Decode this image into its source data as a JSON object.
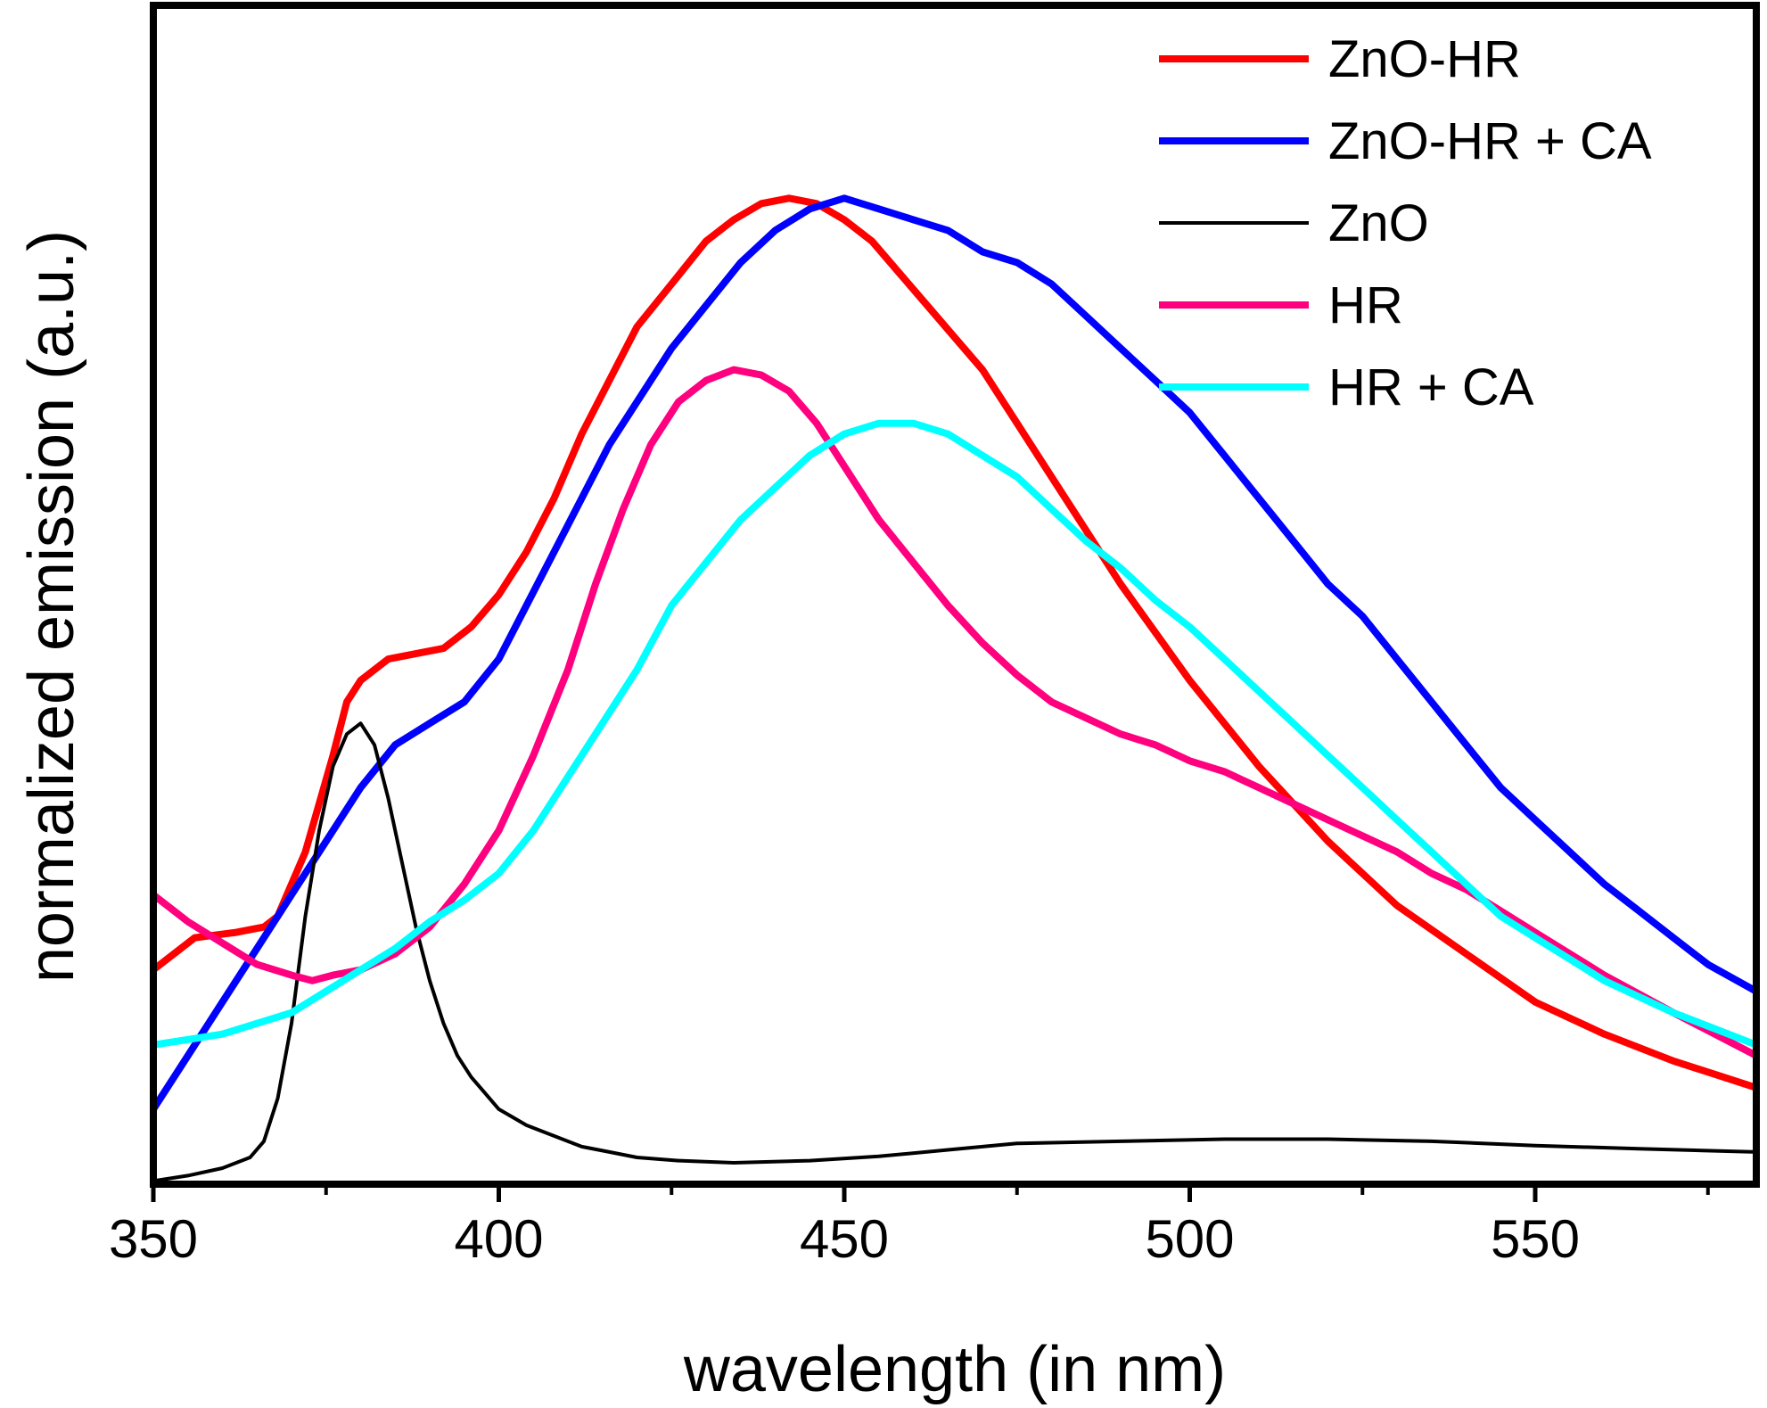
{
  "chart_data": {
    "type": "line",
    "xlabel": "wavelength (in nm)",
    "ylabel": "normalized emission (a.u.)",
    "xlim": [
      350,
      582
    ],
    "ylim": [
      0,
      1.1
    ],
    "x_ticks": [
      350,
      400,
      450,
      500,
      550
    ],
    "x_minor_ticks": [
      375,
      425,
      475,
      525,
      575
    ],
    "y_ticks_shown": false,
    "legend_position": "top-right",
    "series": [
      {
        "name": "ZnO-HR",
        "color": "#ff0000",
        "x": [
          350,
          352,
          356,
          362,
          366,
          368,
          372,
          376,
          378,
          380,
          382,
          384,
          388,
          392,
          396,
          400,
          404,
          408,
          412,
          416,
          420,
          425,
          430,
          434,
          438,
          442,
          446,
          450,
          454,
          458,
          462,
          466,
          470,
          475,
          480,
          485,
          490,
          495,
          500,
          505,
          510,
          515,
          520,
          525,
          530,
          540,
          550,
          560,
          570,
          582
        ],
        "y": [
          0.2,
          0.21,
          0.23,
          0.235,
          0.24,
          0.25,
          0.31,
          0.4,
          0.45,
          0.47,
          0.48,
          0.49,
          0.495,
          0.5,
          0.52,
          0.55,
          0.59,
          0.64,
          0.7,
          0.75,
          0.8,
          0.84,
          0.88,
          0.9,
          0.915,
          0.92,
          0.915,
          0.9,
          0.88,
          0.85,
          0.82,
          0.79,
          0.76,
          0.71,
          0.66,
          0.61,
          0.56,
          0.515,
          0.47,
          0.43,
          0.39,
          0.355,
          0.32,
          0.29,
          0.26,
          0.215,
          0.17,
          0.14,
          0.115,
          0.09
        ]
      },
      {
        "name": "ZnO-HR + CA",
        "color": "#0000ff",
        "x": [
          350,
          355,
          360,
          365,
          370,
          375,
          380,
          385,
          390,
          395,
          400,
          404,
          408,
          412,
          416,
          420,
          425,
          430,
          435,
          440,
          445,
          450,
          455,
          460,
          465,
          470,
          475,
          480,
          485,
          490,
          495,
          500,
          505,
          510,
          515,
          520,
          525,
          530,
          535,
          540,
          545,
          550,
          555,
          560,
          565,
          570,
          575,
          582
        ],
        "y": [
          0.07,
          0.12,
          0.17,
          0.22,
          0.27,
          0.32,
          0.37,
          0.41,
          0.43,
          0.45,
          0.49,
          0.54,
          0.59,
          0.64,
          0.69,
          0.73,
          0.78,
          0.82,
          0.86,
          0.89,
          0.91,
          0.92,
          0.91,
          0.9,
          0.89,
          0.87,
          0.86,
          0.84,
          0.81,
          0.78,
          0.75,
          0.72,
          0.68,
          0.64,
          0.6,
          0.56,
          0.53,
          0.49,
          0.45,
          0.41,
          0.37,
          0.34,
          0.31,
          0.28,
          0.255,
          0.23,
          0.205,
          0.18
        ]
      },
      {
        "name": "ZnO",
        "color": "#000000",
        "x": [
          350,
          355,
          360,
          364,
          366,
          368,
          370,
          372,
          374,
          376,
          378,
          380,
          382,
          384,
          386,
          388,
          390,
          392,
          394,
          396,
          398,
          400,
          404,
          408,
          412,
          416,
          420,
          426,
          434,
          445,
          455,
          465,
          475,
          490,
          505,
          520,
          535,
          550,
          565,
          582
        ],
        "y": [
          0.003,
          0.008,
          0.015,
          0.025,
          0.04,
          0.08,
          0.15,
          0.25,
          0.33,
          0.39,
          0.42,
          0.43,
          0.41,
          0.36,
          0.3,
          0.24,
          0.19,
          0.15,
          0.12,
          0.1,
          0.085,
          0.07,
          0.055,
          0.045,
          0.035,
          0.03,
          0.025,
          0.022,
          0.02,
          0.022,
          0.026,
          0.032,
          0.038,
          0.04,
          0.042,
          0.042,
          0.04,
          0.036,
          0.033,
          0.03
        ]
      },
      {
        "name": "HR",
        "color": "#ff007f",
        "x": [
          350,
          355,
          360,
          365,
          370,
          373,
          376,
          380,
          385,
          390,
          395,
          400,
          405,
          410,
          414,
          418,
          422,
          426,
          430,
          434,
          438,
          442,
          446,
          450,
          455,
          460,
          465,
          470,
          475,
          480,
          485,
          490,
          495,
          500,
          505,
          510,
          515,
          520,
          525,
          530,
          535,
          540,
          545,
          550,
          555,
          560,
          570,
          582
        ],
        "y": [
          0.27,
          0.245,
          0.225,
          0.205,
          0.195,
          0.19,
          0.195,
          0.2,
          0.215,
          0.24,
          0.28,
          0.33,
          0.4,
          0.48,
          0.56,
          0.63,
          0.69,
          0.73,
          0.75,
          0.76,
          0.755,
          0.74,
          0.71,
          0.67,
          0.62,
          0.58,
          0.54,
          0.505,
          0.475,
          0.45,
          0.435,
          0.42,
          0.41,
          0.395,
          0.385,
          0.37,
          0.355,
          0.34,
          0.325,
          0.31,
          0.29,
          0.275,
          0.255,
          0.235,
          0.215,
          0.195,
          0.16,
          0.12
        ]
      },
      {
        "name": "HR + CA",
        "color": "#00ffff",
        "x": [
          350,
          355,
          360,
          365,
          370,
          375,
          380,
          385,
          390,
          395,
          400,
          405,
          410,
          415,
          420,
          425,
          430,
          435,
          440,
          445,
          450,
          455,
          460,
          465,
          470,
          475,
          480,
          485,
          490,
          495,
          500,
          505,
          510,
          515,
          520,
          525,
          530,
          535,
          540,
          545,
          550,
          555,
          560,
          570,
          582
        ],
        "y": [
          0.13,
          0.135,
          0.14,
          0.15,
          0.16,
          0.18,
          0.2,
          0.22,
          0.245,
          0.265,
          0.29,
          0.33,
          0.38,
          0.43,
          0.48,
          0.54,
          0.58,
          0.62,
          0.65,
          0.68,
          0.7,
          0.71,
          0.71,
          0.7,
          0.68,
          0.66,
          0.63,
          0.6,
          0.575,
          0.545,
          0.52,
          0.49,
          0.46,
          0.43,
          0.4,
          0.37,
          0.34,
          0.31,
          0.28,
          0.25,
          0.23,
          0.21,
          0.19,
          0.16,
          0.13
        ]
      }
    ]
  }
}
